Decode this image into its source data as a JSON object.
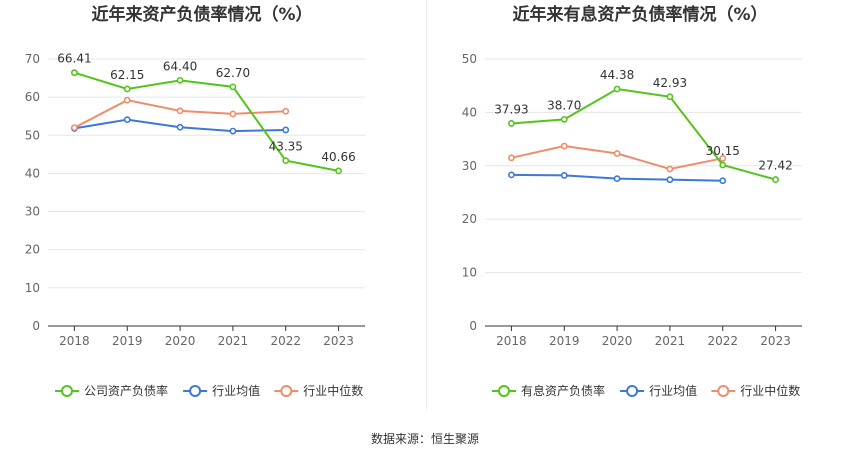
{
  "source_text": "数据来源：恒生聚源",
  "colors": {
    "company": "#52c41a",
    "avg": "#3c78d8",
    "median": "#f08c6c",
    "grid": "#e6e6e6",
    "axis": "#333333"
  },
  "chart_data": [
    {
      "type": "line",
      "title": "近年来资产负债率情况（%）",
      "categories": [
        "2018",
        "2019",
        "2020",
        "2021",
        "2022",
        "2023"
      ],
      "ylim": [
        0,
        70
      ],
      "yticks": [
        0,
        10,
        20,
        30,
        40,
        50,
        60,
        70
      ],
      "grid": true,
      "legend_position": "bottom",
      "series": [
        {
          "name": "公司资产负债率",
          "key": "company",
          "values": [
            66.41,
            62.15,
            64.4,
            62.7,
            43.35,
            40.66
          ],
          "show_labels": true
        },
        {
          "name": "行业均值",
          "key": "avg",
          "values": [
            51.8,
            54.1,
            52.1,
            51.1,
            51.4,
            null
          ],
          "show_labels": false
        },
        {
          "name": "行业中位数",
          "key": "median",
          "values": [
            52.0,
            59.2,
            56.4,
            55.6,
            56.3,
            null
          ],
          "show_labels": false
        }
      ]
    },
    {
      "type": "line",
      "title": "近年来有息资产负债率情况（%）",
      "categories": [
        "2018",
        "2019",
        "2020",
        "2021",
        "2022",
        "2023"
      ],
      "ylim": [
        0,
        50
      ],
      "yticks": [
        0,
        10,
        20,
        30,
        40,
        50
      ],
      "grid": true,
      "legend_position": "bottom",
      "series": [
        {
          "name": "有息资产负债率",
          "key": "company",
          "values": [
            37.93,
            38.7,
            44.38,
            42.93,
            30.15,
            27.42
          ],
          "show_labels": true
        },
        {
          "name": "行业均值",
          "key": "avg",
          "values": [
            28.3,
            28.2,
            27.6,
            27.4,
            27.2,
            null
          ],
          "show_labels": false
        },
        {
          "name": "行业中位数",
          "key": "median",
          "values": [
            31.5,
            33.7,
            32.3,
            29.4,
            31.4,
            null
          ],
          "show_labels": false
        }
      ]
    }
  ]
}
